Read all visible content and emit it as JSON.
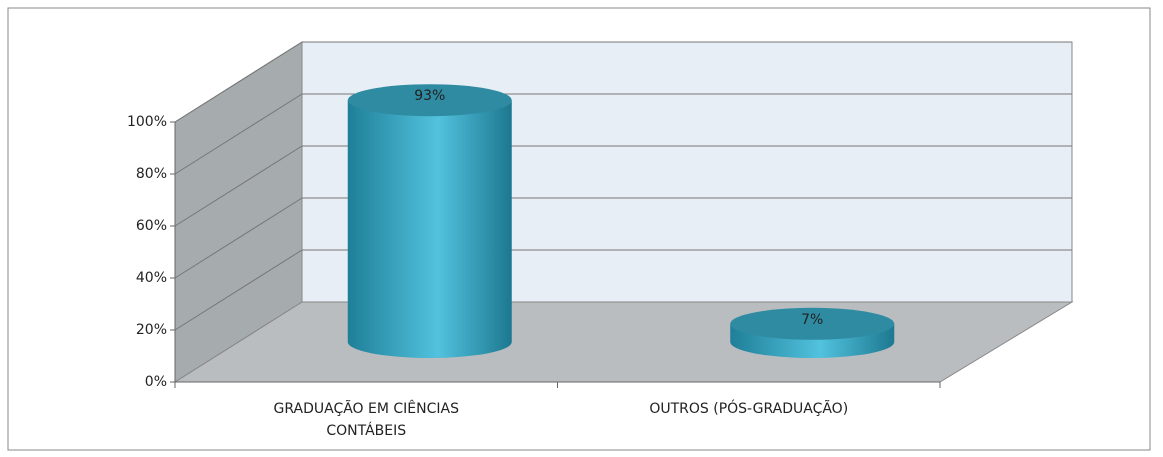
{
  "chart_data": {
    "type": "bar3d",
    "categories": [
      "GRADUAÇÃO EM CIÊNCIAS CONTÁBEIS",
      "OUTROS (PÓS-GRADUAÇÃO)"
    ],
    "values": [
      93,
      7
    ],
    "value_labels": [
      "93%",
      "7%"
    ],
    "color": "#3aa9c6",
    "ylim": [
      0,
      100
    ],
    "yticks": [
      {
        "value": 0,
        "label": "0%"
      },
      {
        "value": 20,
        "label": "20%"
      },
      {
        "value": 40,
        "label": "40%"
      },
      {
        "value": 60,
        "label": "60%"
      },
      {
        "value": 80,
        "label": "80%"
      },
      {
        "value": 100,
        "label": "100%"
      }
    ],
    "grid": true
  }
}
